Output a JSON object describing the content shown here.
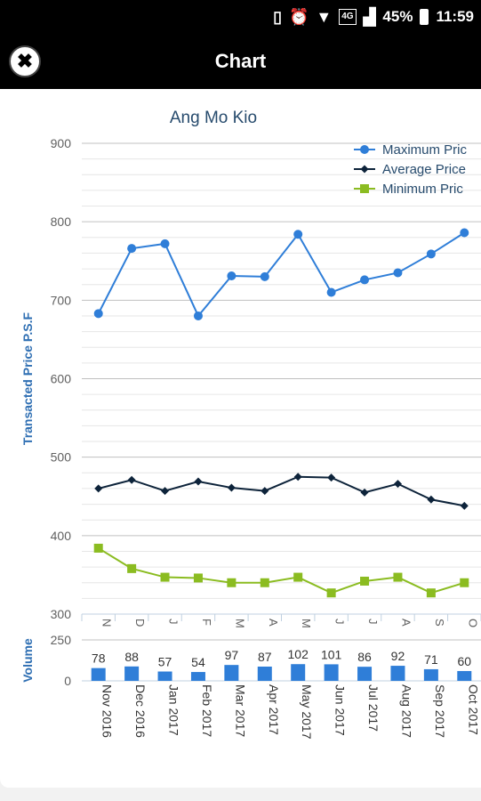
{
  "status_bar": {
    "battery": "45%",
    "time": "11:59",
    "network": "4G",
    "icons": [
      "vibrate-icon",
      "alarm-icon",
      "wifi-icon",
      "signal-icon",
      "battery-icon"
    ]
  },
  "header": {
    "title": "Chart",
    "close_icon": "✖"
  },
  "chart_data": [
    {
      "type": "line",
      "title": "Ang Mo Kio",
      "ylabel": "Transacted Price P.S.F",
      "ylim": [
        300,
        900
      ],
      "yticks": [
        300,
        400,
        500,
        600,
        700,
        800,
        900
      ],
      "categories": [
        "Nov 2016",
        "Dec 2016",
        "Jan 2017",
        "Feb 2017",
        "Mar 2017",
        "Apr 2017",
        "May 2017",
        "Jun 2017",
        "Jul 2017",
        "Aug 2017",
        "Sep 2017",
        "Oct 2017"
      ],
      "tick_labels_truncated": [
        "N",
        "D",
        "J",
        "F",
        "M",
        "A",
        "M",
        "J",
        "J",
        "A",
        "S",
        "O"
      ],
      "legend_position": "top-right",
      "grid": true,
      "series": [
        {
          "name": "Maximum Price",
          "legend_label": "Maximum Pric",
          "color": "#2f7ed8",
          "marker": "circle",
          "values": [
            683,
            766,
            772,
            680,
            731,
            730,
            784,
            710,
            726,
            735,
            759,
            786
          ]
        },
        {
          "name": "Average Price",
          "legend_label": "Average Price",
          "color": "#0d233a",
          "marker": "diamond",
          "values": [
            460,
            471,
            457,
            469,
            461,
            457,
            475,
            474,
            455,
            466,
            446,
            438
          ]
        },
        {
          "name": "Minimum Price",
          "legend_label": "Minimum Pric",
          "color": "#8bbc21",
          "marker": "square",
          "values": [
            384,
            358,
            347,
            346,
            340,
            340,
            347,
            327,
            342,
            347,
            327,
            340
          ]
        }
      ]
    },
    {
      "type": "bar",
      "ylabel": "Volume",
      "ylim": [
        0,
        250
      ],
      "yticks": [
        0,
        250
      ],
      "categories": [
        "Nov 2016",
        "Dec 2016",
        "Jan 2017",
        "Feb 2017",
        "Mar 2017",
        "Apr 2017",
        "May 2017",
        "Jun 2017",
        "Jul 2017",
        "Aug 2017",
        "Sep 2017",
        "Oct 2017"
      ],
      "values": [
        78,
        88,
        57,
        54,
        97,
        87,
        102,
        101,
        86,
        92,
        71,
        60
      ],
      "color": "#2f7ed8"
    }
  ]
}
